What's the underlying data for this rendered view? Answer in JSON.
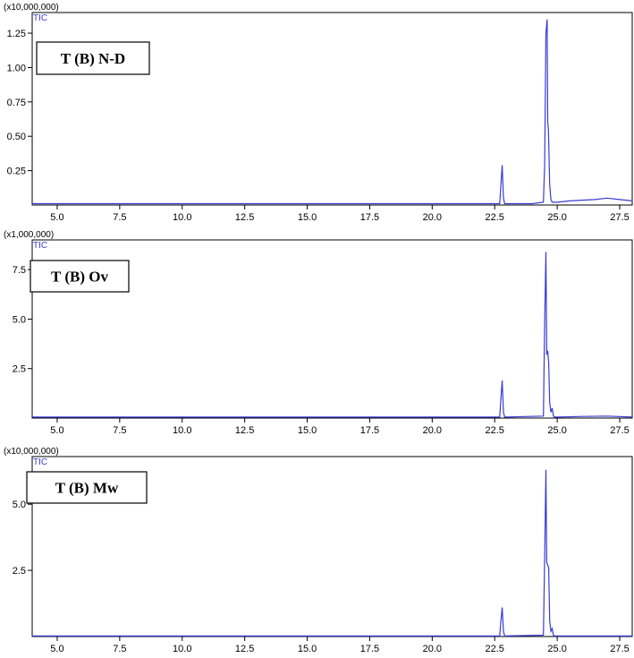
{
  "colors": {
    "trace": "#3a3ad6",
    "axis": "#000000",
    "background": "#ffffff"
  },
  "chart_data": [
    {
      "type": "line",
      "title": "",
      "scale_label": "(x10,000,000)",
      "series_label": "TIC",
      "sample_label": "T (B) N-D",
      "xlabel": "",
      "ylabel": "",
      "xlim": [
        4,
        28
      ],
      "ylim": [
        0,
        1.4
      ],
      "x_ticks": [
        5.0,
        7.5,
        10.0,
        12.5,
        15.0,
        17.5,
        20.0,
        22.5,
        25.0,
        27.5
      ],
      "x_tick_labels": [
        "5.0",
        "7.5",
        "10.0",
        "12.5",
        "15.0",
        "17.5",
        "20.0",
        "22.5",
        "25.0",
        "27.5"
      ],
      "y_ticks": [
        0.25,
        0.5,
        0.75,
        1.0,
        1.25
      ],
      "y_tick_labels": [
        "0.25",
        "0.50",
        "0.75",
        "1.00",
        "1.25"
      ],
      "series": [
        {
          "x": [
            4.0,
            21.5,
            22.7,
            22.75,
            22.8,
            22.85,
            22.9,
            24.0,
            24.45,
            24.5,
            24.55,
            24.6,
            24.62,
            24.65,
            24.7,
            24.75,
            24.8,
            24.9,
            25.0,
            25.5,
            26.5,
            27.0,
            27.5,
            28.0
          ],
          "y": [
            0.01,
            0.01,
            0.01,
            0.15,
            0.29,
            0.05,
            0.01,
            0.01,
            0.02,
            0.3,
            1.25,
            1.35,
            0.6,
            0.55,
            0.15,
            0.04,
            0.02,
            0.02,
            0.02,
            0.03,
            0.04,
            0.05,
            0.04,
            0.03
          ]
        }
      ]
    },
    {
      "type": "line",
      "title": "",
      "scale_label": "(x1,000,000)",
      "series_label": "TIC",
      "sample_label": "T (B) Ov",
      "xlabel": "",
      "ylabel": "",
      "xlim": [
        4,
        28
      ],
      "ylim": [
        0,
        9
      ],
      "x_ticks": [
        5.0,
        7.5,
        10.0,
        12.5,
        15.0,
        17.5,
        20.0,
        22.5,
        25.0,
        27.5
      ],
      "x_tick_labels": [
        "5.0",
        "7.5",
        "10.0",
        "12.5",
        "15.0",
        "17.5",
        "20.0",
        "22.5",
        "25.0",
        "27.5"
      ],
      "y_ticks": [
        2.5,
        5.0,
        7.5
      ],
      "y_tick_labels": [
        "2.5",
        "5.0",
        "7.5"
      ],
      "series": [
        {
          "x": [
            4.0,
            22.7,
            22.75,
            22.8,
            22.85,
            22.9,
            24.45,
            24.5,
            24.55,
            24.58,
            24.62,
            24.66,
            24.7,
            24.75,
            24.8,
            24.85,
            24.9,
            25.0,
            26.0,
            27.0,
            28.0
          ],
          "y": [
            0.05,
            0.05,
            1.0,
            1.9,
            0.3,
            0.05,
            0.1,
            4.8,
            8.4,
            3.2,
            3.4,
            2.8,
            0.8,
            0.3,
            0.5,
            0.1,
            0.05,
            0.05,
            0.08,
            0.1,
            0.05
          ]
        }
      ]
    },
    {
      "type": "line",
      "title": "",
      "scale_label": "(x10,000,000)",
      "series_label": "TIC",
      "sample_label": "T (B) Mw",
      "xlabel": "",
      "ylabel": "",
      "xlim": [
        4,
        28
      ],
      "ylim": [
        0,
        6.8
      ],
      "x_ticks": [
        5.0,
        7.5,
        10.0,
        12.5,
        15.0,
        17.5,
        20.0,
        22.5,
        25.0,
        27.5
      ],
      "x_tick_labels": [
        "5.0",
        "7.5",
        "10.0",
        "12.5",
        "15.0",
        "17.5",
        "20.0",
        "22.5",
        "25.0",
        "27.5"
      ],
      "y_ticks": [
        2.5,
        5.0
      ],
      "y_tick_labels": [
        "2.5",
        "5.0"
      ],
      "series": [
        {
          "x": [
            4.0,
            22.7,
            22.75,
            22.8,
            22.85,
            22.9,
            24.45,
            24.5,
            24.55,
            24.58,
            24.62,
            24.66,
            24.7,
            24.75,
            24.8,
            24.85,
            24.9,
            25.0,
            28.0
          ],
          "y": [
            0.02,
            0.02,
            0.6,
            1.1,
            0.2,
            0.02,
            0.05,
            3.0,
            6.3,
            2.8,
            2.7,
            2.6,
            0.6,
            0.2,
            0.3,
            0.05,
            0.02,
            0.02,
            0.02
          ]
        }
      ]
    }
  ]
}
